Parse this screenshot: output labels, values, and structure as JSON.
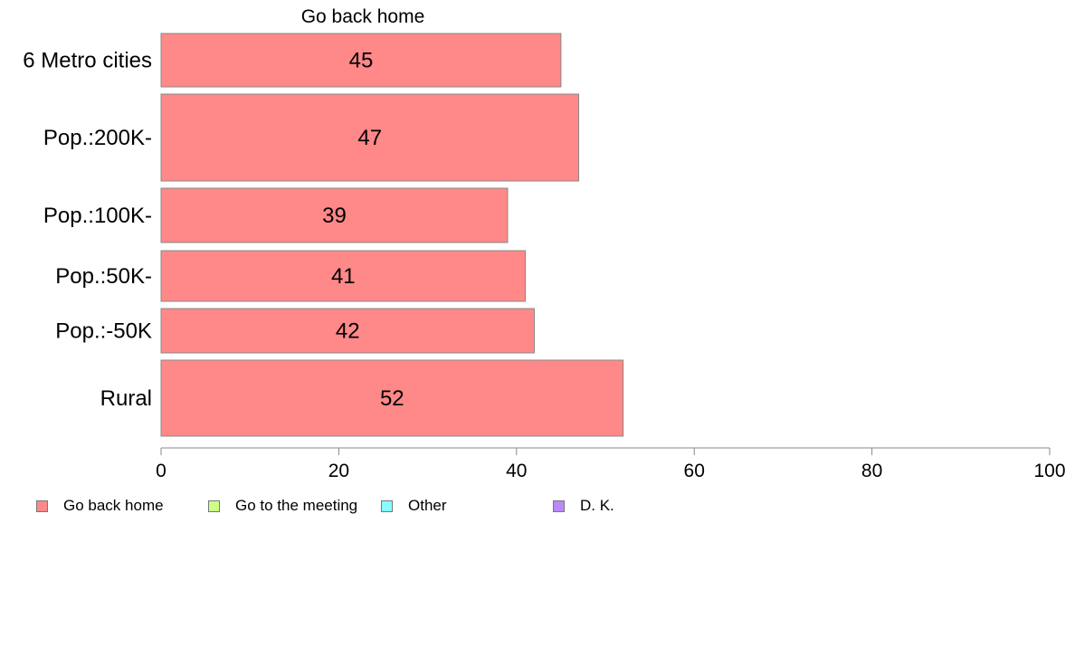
{
  "chart_data": {
    "type": "bar",
    "orientation": "horizontal",
    "title": "Go back home",
    "categories": [
      "6 Metro cities",
      "Pop.:200K-",
      "Pop.:100K-",
      "Pop.:50K-",
      "Pop.:-50K",
      "Rural"
    ],
    "series": [
      {
        "name": "Go back home",
        "values": [
          45,
          47,
          39,
          41,
          42,
          52
        ]
      }
    ],
    "data_labels": [
      "45",
      "47",
      "39",
      "41",
      "42",
      "52"
    ],
    "xlim": [
      0,
      100
    ],
    "x_ticks": [
      0,
      20,
      40,
      60,
      80,
      100
    ],
    "x_tick_labels": [
      "0",
      "20",
      "40",
      "60",
      "80",
      "100"
    ],
    "grid": false,
    "legend_position": "bottom-left"
  },
  "legend": [
    {
      "label": "Go back home",
      "color": "#ff8888"
    },
    {
      "label": "Go to the meeting",
      "color": "#ccff88"
    },
    {
      "label": "Other",
      "color": "#88ffff"
    },
    {
      "label": "D. K.",
      "color": "#bb88ff"
    }
  ]
}
